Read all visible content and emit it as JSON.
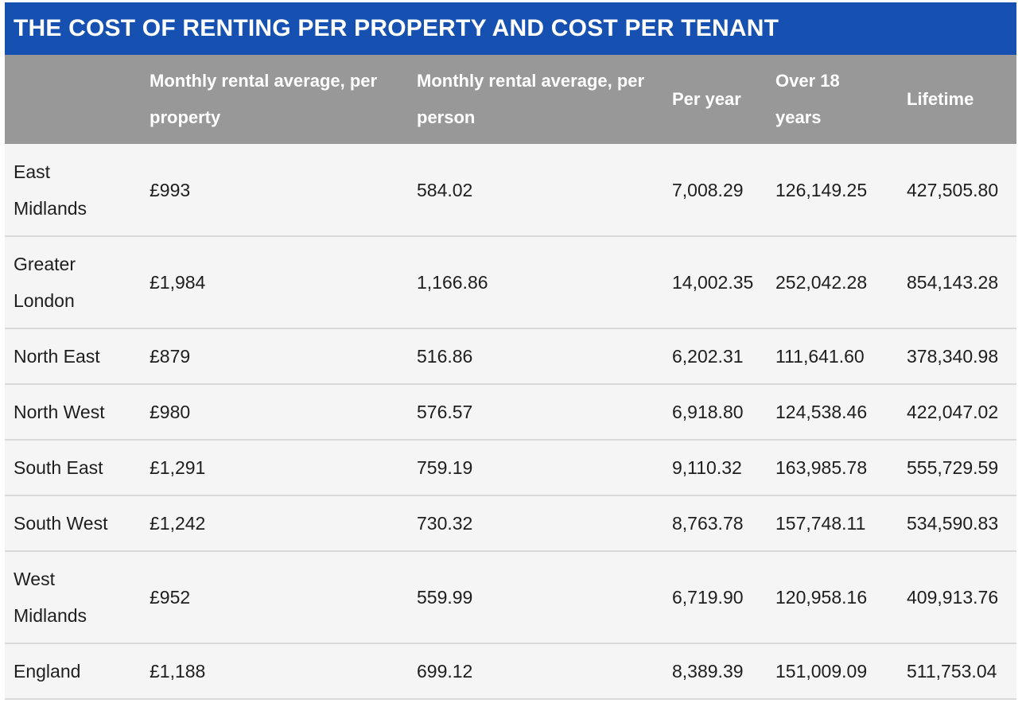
{
  "title": "THE COST OF RENTING PER PROPERTY AND COST PER TENANT",
  "columns": [
    "",
    "Monthly rental average, per property",
    "Monthly rental average, per person",
    "Per year",
    "Over 18 years",
    "Lifetime"
  ],
  "rows": [
    {
      "region": "East Midlands",
      "per_property": "£993",
      "per_person": "584.02",
      "per_year": "7,008.29",
      "over_18": "126,149.25",
      "lifetime": "427,505.80"
    },
    {
      "region": "Greater London",
      "per_property": "£1,984",
      "per_person": "1,166.86",
      "per_year": "14,002.35",
      "over_18": "252,042.28",
      "lifetime": "854,143.28"
    },
    {
      "region": "North East",
      "per_property": "£879",
      "per_person": "516.86",
      "per_year": "6,202.31",
      "over_18": "111,641.60",
      "lifetime": "378,340.98"
    },
    {
      "region": "North West",
      "per_property": "£980",
      "per_person": "576.57",
      "per_year": "6,918.80",
      "over_18": "124,538.46",
      "lifetime": "422,047.02"
    },
    {
      "region": "South East",
      "per_property": "£1,291",
      "per_person": "759.19",
      "per_year": "9,110.32",
      "over_18": "163,985.78",
      "lifetime": "555,729.59"
    },
    {
      "region": "South West",
      "per_property": "£1,242",
      "per_person": "730.32",
      "per_year": "8,763.78",
      "over_18": "157,748.11",
      "lifetime": "534,590.83"
    },
    {
      "region": "West Midlands",
      "per_property": "£952",
      "per_person": "559.99",
      "per_year": "6,719.90",
      "over_18": "120,958.16",
      "lifetime": "409,913.76"
    },
    {
      "region": "England",
      "per_property": "£1,188",
      "per_person": "699.12",
      "per_year": "8,389.39",
      "over_18": "151,009.09",
      "lifetime": "511,753.04"
    }
  ],
  "colors": {
    "title_background": "#1650b0",
    "header_background": "#989898",
    "row_background": "#f5f5f5",
    "row_divider": "#d9d9d9"
  }
}
